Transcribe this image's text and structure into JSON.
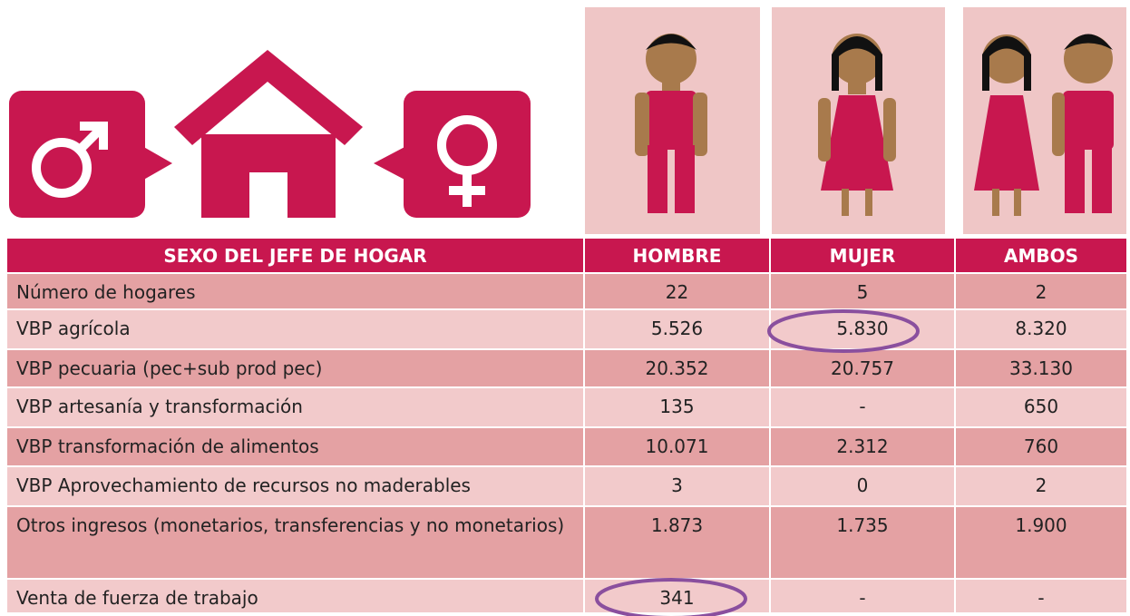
{
  "table": {
    "header": [
      "SEXO DEL JEFE DE HOGAR",
      "HOMBRE",
      "MUJER",
      "AMBOS"
    ],
    "rows": [
      [
        "Número de hogares",
        "22",
        "5",
        "2"
      ],
      [
        "VBP agrícola",
        "5.526",
        "5.830",
        "8.320"
      ],
      [
        "VBP pecuaria (pec+sub prod pec)",
        "20.352",
        "20.757",
        "33.130"
      ],
      [
        "VBP artesanía y transformación",
        "135",
        "-",
        "650"
      ],
      [
        "VBP transformación de alimentos",
        "10.071",
        "2.312",
        "760"
      ],
      [
        "VBP Aprovechamiento de recursos no maderables",
        "3",
        "0",
        "2"
      ],
      [
        "Otros ingresos (monetarios, transferencias y no monetarios)",
        "1.873",
        "1.735",
        "1.900"
      ],
      [
        "Venta de fuerza de trabajo",
        "341",
        "-",
        "-"
      ]
    ]
  }
}
